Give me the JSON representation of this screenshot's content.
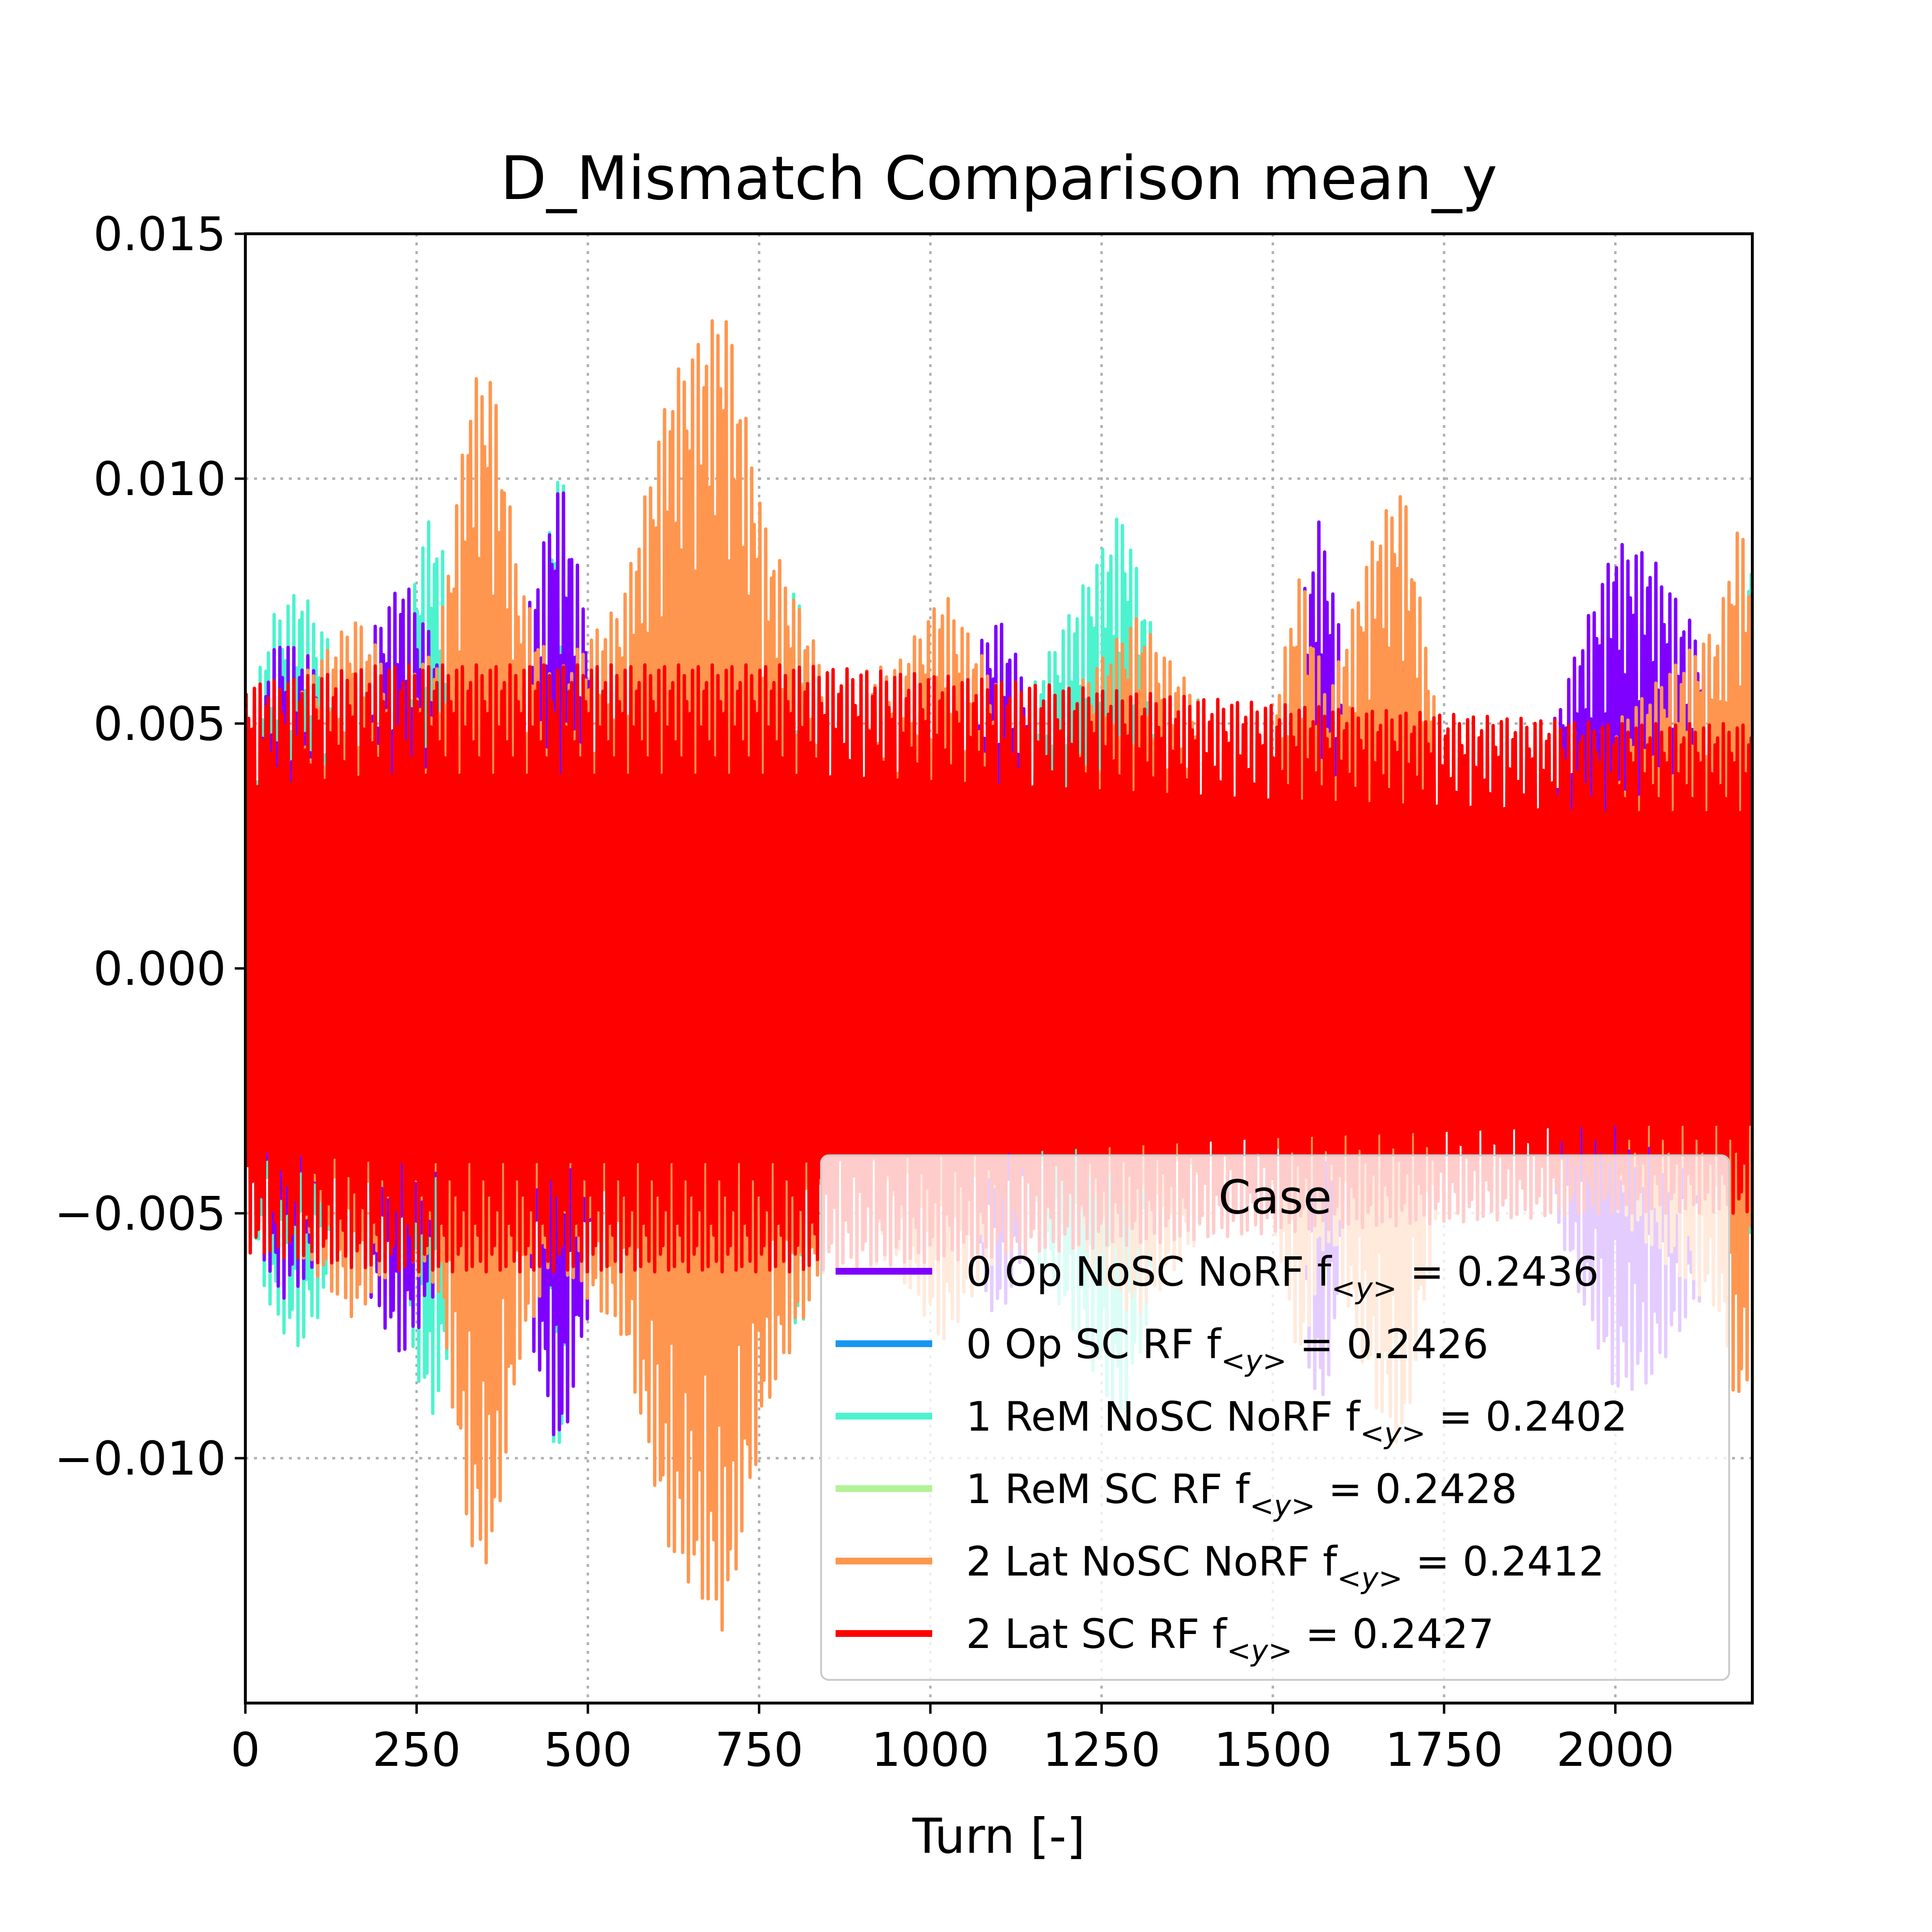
{
  "chart_data": {
    "type": "line",
    "title": "D_Mismatch Comparison mean_y",
    "xlabel": "Turn [-]",
    "ylabel": "",
    "xlim": [
      0,
      2200
    ],
    "ylim": [
      -0.015,
      0.015
    ],
    "xticks": [
      0,
      250,
      500,
      750,
      1000,
      1250,
      1500,
      1750,
      2000
    ],
    "xtick_labels": [
      "0",
      "250",
      "500",
      "750",
      "1000",
      "1250",
      "1500",
      "1750",
      "2000"
    ],
    "yticks": [
      0.015,
      0.01,
      0.005,
      0.0,
      -0.005,
      -0.01
    ],
    "ytick_labels": [
      "0.015",
      "0.010",
      "0.005",
      "0.000",
      "−0.005",
      "−0.010"
    ],
    "grid": true,
    "legend": {
      "title": "Case",
      "placement": "lower-right"
    },
    "oscillation_turns_per_cycle": 4.1,
    "series": [
      {
        "name": "0 Op NoSC NoRF",
        "tune": "0.2436",
        "color": "#7f00ff",
        "envelope": [
          [
            0,
            0.005
          ],
          [
            50,
            0.0068
          ],
          [
            100,
            0.0063
          ],
          [
            150,
            0.006
          ],
          [
            230,
            0.008
          ],
          [
            300,
            0.006
          ],
          [
            380,
            0.0055
          ],
          [
            460,
            0.0101
          ],
          [
            520,
            0.0056
          ],
          [
            600,
            0.0055
          ],
          [
            700,
            0.0055
          ],
          [
            800,
            0.0057
          ],
          [
            900,
            0.0057
          ],
          [
            1000,
            0.0052
          ],
          [
            1100,
            0.0072
          ],
          [
            1150,
            0.0056
          ],
          [
            1250,
            0.0055
          ],
          [
            1300,
            0.0054
          ],
          [
            1400,
            0.0046
          ],
          [
            1500,
            0.0048
          ],
          [
            1570,
            0.0093
          ],
          [
            1620,
            0.005
          ],
          [
            1700,
            0.0045
          ],
          [
            1800,
            0.0047
          ],
          [
            1900,
            0.0046
          ],
          [
            1950,
            0.0068
          ],
          [
            2000,
            0.0087
          ],
          [
            2050,
            0.0085
          ],
          [
            2100,
            0.0073
          ],
          [
            2150,
            0.0062
          ],
          [
            2200,
            0.006
          ]
        ]
      },
      {
        "name": "0 Op SC RF",
        "tune": "0.2426",
        "color": "#1996f3",
        "envelope": [
          [
            0,
            0.005
          ],
          [
            2200,
            0.0048
          ]
        ]
      },
      {
        "name": "1 ReM NoSC NoRF",
        "tune": "0.2402",
        "color": "#4df3ce",
        "envelope": [
          [
            0,
            0.005
          ],
          [
            40,
            0.0072
          ],
          [
            80,
            0.0078
          ],
          [
            130,
            0.0065
          ],
          [
            200,
            0.0057
          ],
          [
            270,
            0.0093
          ],
          [
            330,
            0.0067
          ],
          [
            400,
            0.006
          ],
          [
            460,
            0.0104
          ],
          [
            500,
            0.006
          ],
          [
            600,
            0.0063
          ],
          [
            700,
            0.0066
          ],
          [
            800,
            0.0078
          ],
          [
            850,
            0.0058
          ],
          [
            950,
            0.0055
          ],
          [
            1050,
            0.0052
          ],
          [
            1150,
            0.0058
          ],
          [
            1280,
            0.0094
          ],
          [
            1340,
            0.006
          ],
          [
            1450,
            0.0051
          ],
          [
            1550,
            0.0048
          ],
          [
            1700,
            0.0047
          ],
          [
            1850,
            0.0046
          ],
          [
            1950,
            0.005
          ],
          [
            2000,
            0.0057
          ],
          [
            2050,
            0.0053
          ],
          [
            2120,
            0.0057
          ],
          [
            2150,
            0.007
          ],
          [
            2200,
            0.0086
          ]
        ]
      },
      {
        "name": "1 ReM SC RF",
        "tune": "0.2428",
        "color": "#b2f396",
        "envelope": [
          [
            0,
            0.005
          ],
          [
            2200,
            0.0048
          ]
        ]
      },
      {
        "name": "2 Lat NoSC NoRF",
        "tune": "0.2412",
        "color": "#ff964f",
        "envelope": [
          [
            0,
            0.005
          ],
          [
            100,
            0.0062
          ],
          [
            160,
            0.0072
          ],
          [
            220,
            0.006
          ],
          [
            280,
            0.0065
          ],
          [
            330,
            0.012
          ],
          [
            360,
            0.0122
          ],
          [
            400,
            0.008
          ],
          [
            450,
            0.006
          ],
          [
            550,
            0.0075
          ],
          [
            620,
            0.012
          ],
          [
            700,
            0.0136
          ],
          [
            760,
            0.009
          ],
          [
            850,
            0.006
          ],
          [
            950,
            0.0062
          ],
          [
            1020,
            0.0077
          ],
          [
            1100,
            0.0058
          ],
          [
            1200,
            0.0055
          ],
          [
            1300,
            0.0072
          ],
          [
            1400,
            0.0054
          ],
          [
            1500,
            0.0052
          ],
          [
            1540,
            0.0082
          ],
          [
            1580,
            0.0055
          ],
          [
            1650,
            0.009
          ],
          [
            1690,
            0.0099
          ],
          [
            1740,
            0.0052
          ],
          [
            1900,
            0.0048
          ],
          [
            2000,
            0.005
          ],
          [
            2100,
            0.0064
          ],
          [
            2150,
            0.007
          ],
          [
            2180,
            0.0092
          ],
          [
            2200,
            0.008
          ]
        ]
      },
      {
        "name": "2 Lat SC RF",
        "tune": "0.2427",
        "color": "#ff0000",
        "envelope": [
          [
            0,
            0.0058
          ],
          [
            200,
            0.0062
          ],
          [
            500,
            0.0062
          ],
          [
            800,
            0.0062
          ],
          [
            1000,
            0.006
          ],
          [
            1250,
            0.0057
          ],
          [
            1500,
            0.0054
          ],
          [
            1750,
            0.0052
          ],
          [
            2000,
            0.005
          ],
          [
            2200,
            0.005
          ]
        ]
      }
    ]
  }
}
